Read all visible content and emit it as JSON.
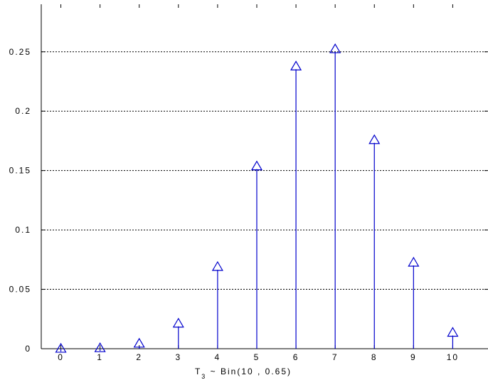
{
  "chart_data": {
    "type": "stem",
    "x": [
      0,
      1,
      2,
      3,
      4,
      5,
      6,
      7,
      8,
      9,
      10
    ],
    "values": [
      3e-05,
      0.0005,
      0.0043,
      0.0212,
      0.0689,
      0.1536,
      0.2377,
      0.2522,
      0.1757,
      0.0725,
      0.0135
    ],
    "marker": "triangle",
    "color": "#0000cc",
    "grid": "horizontal-dotted",
    "xlim": [
      -0.5,
      10.9
    ],
    "ylim": [
      0,
      0.29
    ],
    "xticks": [
      "0",
      "1",
      "2",
      "3",
      "4",
      "5",
      "6",
      "7",
      "8",
      "9",
      "10",
      "1"
    ],
    "yticks": [
      "0",
      "0.05",
      "0.1",
      "0.15",
      "0.2",
      "0.25"
    ],
    "xlabel": {
      "main": "T",
      "sub": "3",
      "rest": " ~ Bin(10 , 0.65)"
    },
    "title": "",
    "ylabel": ""
  }
}
